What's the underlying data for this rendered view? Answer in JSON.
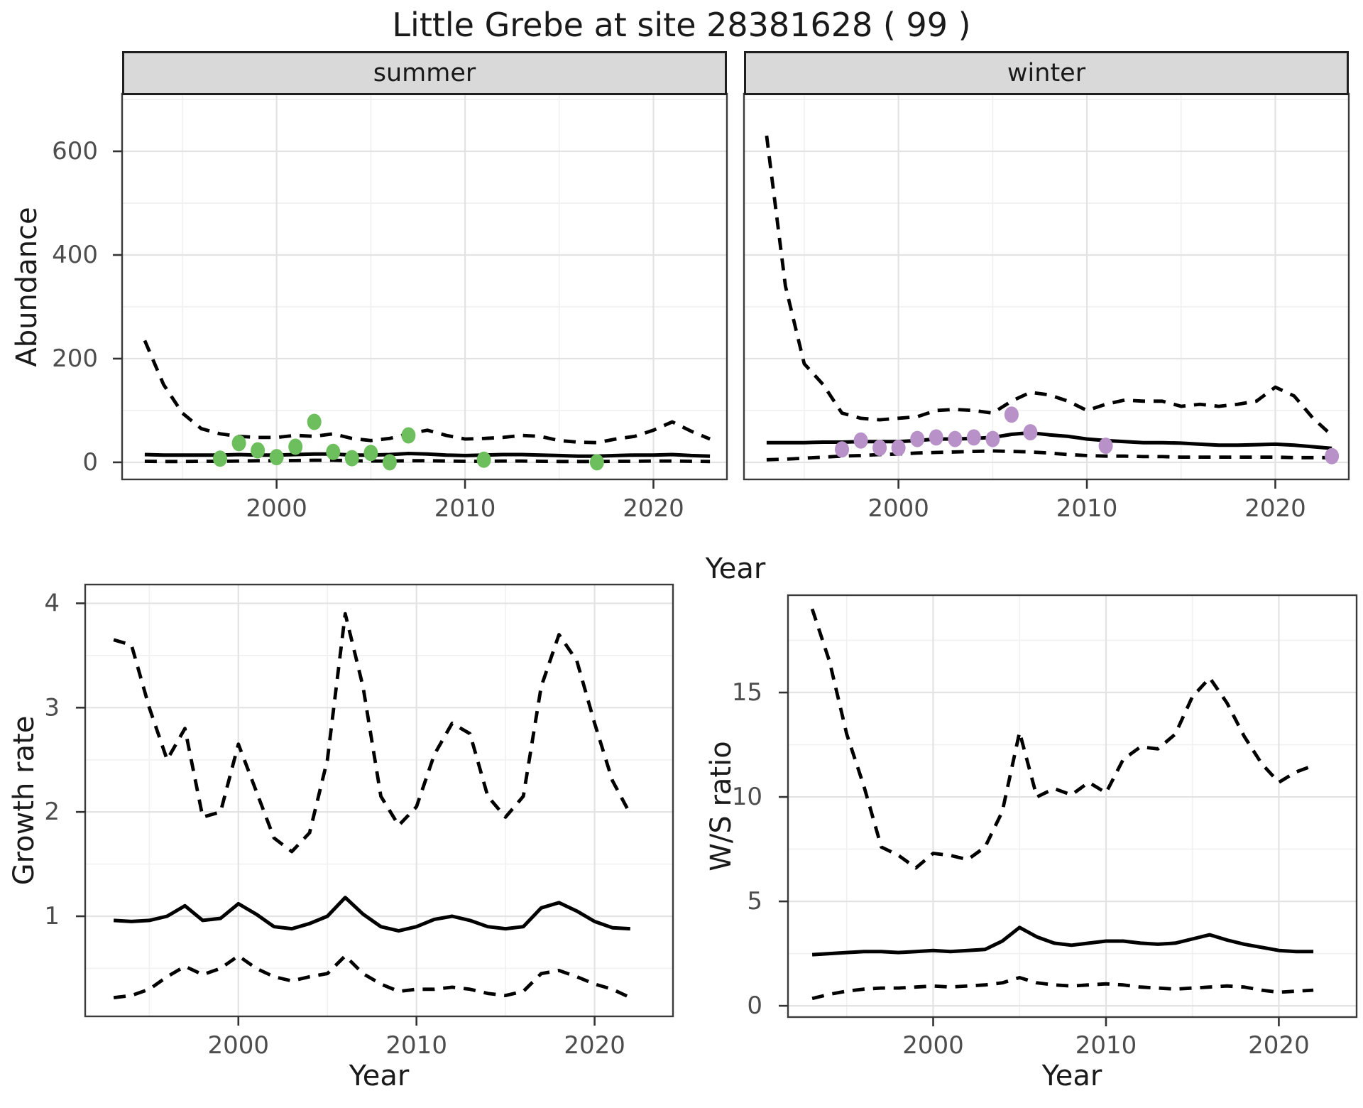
{
  "title": "Little Grebe at site 28381628 ( 99 )",
  "colors": {
    "summer_points": "#6DBE5C",
    "winter_points": "#B791C8",
    "line": "#000000",
    "strip_bg": "#D9D9D9",
    "strip_border": "#1F1F1F",
    "panel_border": "#3A3A3A",
    "grid_major": "#E3E3E3",
    "grid_minor": "#F1F1F1",
    "tick_mark": "#333333",
    "tick_text": "#4D4D4D",
    "title_text": "#1A1A1A",
    "background": "#FFFFFF"
  },
  "chart_data": [
    {
      "id": "summer",
      "type": "line",
      "facet_label": "summer",
      "x_axis": {
        "title": "Year",
        "ticks": [
          2000,
          2010,
          2020
        ],
        "minor_ticks": [
          1995,
          2005,
          2015
        ],
        "range": [
          1991.8,
          2023.9
        ]
      },
      "y_axis": {
        "title": "Abundance",
        "ticks": [
          0,
          200,
          400,
          600
        ],
        "minor_ticks": [
          100,
          300,
          500,
          700
        ],
        "range": [
          -33,
          711
        ]
      },
      "series": [
        {
          "name": "upper-95ci",
          "style": "dashed",
          "x": [
            1993,
            1994,
            1995,
            1996,
            1997,
            1998,
            1999,
            2000,
            2001,
            2002,
            2003,
            2004,
            2005,
            2006,
            2007,
            2008,
            2009,
            2010,
            2011,
            2012,
            2013,
            2014,
            2015,
            2016,
            2017,
            2018,
            2019,
            2020,
            2021,
            2022,
            2023
          ],
          "y": [
            235,
            150,
            95,
            65,
            55,
            50,
            48,
            48,
            52,
            50,
            55,
            46,
            42,
            46,
            55,
            62,
            52,
            45,
            46,
            48,
            52,
            50,
            42,
            39,
            38,
            45,
            50,
            62,
            78,
            60,
            45
          ]
        },
        {
          "name": "median",
          "style": "solid",
          "x": [
            1993,
            1994,
            1995,
            1996,
            1997,
            1998,
            1999,
            2000,
            2001,
            2002,
            2003,
            2004,
            2005,
            2006,
            2007,
            2008,
            2009,
            2010,
            2011,
            2012,
            2013,
            2014,
            2015,
            2016,
            2017,
            2018,
            2019,
            2020,
            2021,
            2022,
            2023
          ],
          "y": [
            15,
            14,
            14,
            14,
            14,
            15,
            14,
            14,
            15,
            16,
            16,
            14,
            14,
            15,
            17,
            16,
            14,
            13,
            14,
            15,
            15,
            14,
            13,
            12,
            12,
            13,
            14,
            14,
            15,
            13,
            12
          ]
        },
        {
          "name": "lower-95ci",
          "style": "dashed",
          "x": [
            1993,
            1994,
            1995,
            1996,
            1997,
            1998,
            1999,
            2000,
            2001,
            2002,
            2003,
            2004,
            2005,
            2006,
            2007,
            2008,
            2009,
            2010,
            2011,
            2012,
            2013,
            2014,
            2015,
            2016,
            2017,
            2018,
            2019,
            2020,
            2021,
            2022,
            2023
          ],
          "y": [
            2,
            1.5,
            1.5,
            2,
            2,
            2.5,
            3,
            3,
            3.5,
            4,
            4,
            3,
            2.5,
            2.5,
            3,
            3,
            2.5,
            2,
            2,
            2.5,
            2.5,
            2,
            1.5,
            1.5,
            1.5,
            2,
            2,
            2.5,
            2.5,
            2,
            1.5
          ]
        }
      ],
      "points": {
        "name": "observed-counts",
        "color_key": "summer_points",
        "x": [
          1997,
          1998,
          1999,
          2000,
          2001,
          2002,
          2003,
          2004,
          2005,
          2006,
          2007,
          2011,
          2017
        ],
        "y": [
          7,
          37,
          23,
          10,
          30,
          78,
          20,
          8,
          18,
          0,
          52,
          5,
          0
        ]
      }
    },
    {
      "id": "winter",
      "type": "line",
      "facet_label": "winter",
      "x_axis": {
        "title": "",
        "ticks": [
          2000,
          2010,
          2020
        ],
        "minor_ticks": [
          1995,
          2005,
          2015
        ],
        "range": [
          1991.8,
          2023.9
        ]
      },
      "y_axis": {
        "title": "",
        "ticks": [
          0,
          200,
          400,
          600
        ],
        "minor_ticks": [
          100,
          300,
          500,
          700
        ],
        "range": [
          -33,
          711
        ]
      },
      "series": [
        {
          "name": "upper-95ci",
          "style": "dashed",
          "x": [
            1993,
            1994,
            1995,
            1996,
            1997,
            1998,
            1999,
            2000,
            2001,
            2002,
            2003,
            2004,
            2005,
            2006,
            2007,
            2008,
            2009,
            2010,
            2011,
            2012,
            2013,
            2014,
            2015,
            2016,
            2017,
            2018,
            2019,
            2020,
            2021,
            2022,
            2023
          ],
          "y": [
            630,
            340,
            190,
            150,
            95,
            85,
            82,
            85,
            88,
            100,
            102,
            100,
            95,
            118,
            135,
            130,
            118,
            100,
            112,
            120,
            118,
            118,
            108,
            112,
            108,
            112,
            118,
            145,
            128,
            85,
            52
          ]
        },
        {
          "name": "median",
          "style": "solid",
          "x": [
            1993,
            1994,
            1995,
            1996,
            1997,
            1998,
            1999,
            2000,
            2001,
            2002,
            2003,
            2004,
            2005,
            2006,
            2007,
            2008,
            2009,
            2010,
            2011,
            2012,
            2013,
            2014,
            2015,
            2016,
            2017,
            2018,
            2019,
            2020,
            2021,
            2022,
            2023
          ],
          "y": [
            38,
            38,
            38,
            39,
            39,
            40,
            40,
            40,
            42,
            45,
            45,
            46,
            48,
            54,
            57,
            53,
            50,
            45,
            42,
            40,
            38,
            38,
            37,
            35,
            33,
            33,
            34,
            35,
            33,
            30,
            27
          ]
        },
        {
          "name": "lower-95ci",
          "style": "dashed",
          "x": [
            1993,
            1994,
            1995,
            1996,
            1997,
            1998,
            1999,
            2000,
            2001,
            2002,
            2003,
            2004,
            2005,
            2006,
            2007,
            2008,
            2009,
            2010,
            2011,
            2012,
            2013,
            2014,
            2015,
            2016,
            2017,
            2018,
            2019,
            2020,
            2021,
            2022,
            2023
          ],
          "y": [
            5,
            6,
            8,
            10,
            12,
            13,
            15,
            16,
            18,
            19,
            20,
            21,
            22,
            21,
            20,
            18,
            15,
            13,
            12,
            12,
            11,
            11,
            10,
            10,
            10,
            10,
            10,
            10,
            9,
            9,
            9
          ]
        }
      ],
      "points": {
        "name": "observed-counts",
        "color_key": "winter_points",
        "x": [
          1997,
          1998,
          1999,
          2000,
          2001,
          2002,
          2003,
          2004,
          2005,
          2006,
          2007,
          2011,
          2023
        ],
        "y": [
          25,
          42,
          28,
          28,
          45,
          48,
          45,
          48,
          45,
          92,
          58,
          32,
          12
        ]
      }
    },
    {
      "id": "growth_rate",
      "type": "line",
      "facet_label": "",
      "x_axis": {
        "title": "Year",
        "ticks": [
          2000,
          2010,
          2020
        ],
        "minor_ticks": [
          1995,
          2005,
          2015
        ],
        "range": [
          1991.4,
          2024.4
        ]
      },
      "y_axis": {
        "title": "Growth rate",
        "ticks": [
          1,
          2,
          3,
          4
        ],
        "minor_ticks": [
          0.5,
          1.5,
          2.5,
          3.5
        ],
        "range": [
          0.04,
          4.18
        ]
      },
      "series": [
        {
          "name": "upper-95ci",
          "style": "dashed",
          "x": [
            1993,
            1994,
            1995,
            1996,
            1997,
            1998,
            1999,
            2000,
            2001,
            2002,
            2003,
            2004,
            2005,
            2006,
            2007,
            2008,
            2009,
            2010,
            2011,
            2012,
            2013,
            2014,
            2015,
            2016,
            2017,
            2018,
            2019,
            2020,
            2021,
            2022
          ],
          "y": [
            3.65,
            3.6,
            3.0,
            2.5,
            2.8,
            1.95,
            2.0,
            2.65,
            2.2,
            1.75,
            1.62,
            1.8,
            2.5,
            3.9,
            3.2,
            2.15,
            1.87,
            2.05,
            2.55,
            2.85,
            2.75,
            2.15,
            1.95,
            2.15,
            3.2,
            3.7,
            3.45,
            2.85,
            2.3,
            1.98
          ]
        },
        {
          "name": "median",
          "style": "solid",
          "x": [
            1993,
            1994,
            1995,
            1996,
            1997,
            1998,
            1999,
            2000,
            2001,
            2002,
            2003,
            2004,
            2005,
            2006,
            2007,
            2008,
            2009,
            2010,
            2011,
            2012,
            2013,
            2014,
            2015,
            2016,
            2017,
            2018,
            2019,
            2020,
            2021,
            2022
          ],
          "y": [
            0.96,
            0.95,
            0.96,
            1.0,
            1.1,
            0.96,
            0.98,
            1.12,
            1.02,
            0.9,
            0.88,
            0.93,
            1.0,
            1.18,
            1.02,
            0.9,
            0.86,
            0.9,
            0.97,
            1.0,
            0.96,
            0.9,
            0.88,
            0.9,
            1.08,
            1.13,
            1.05,
            0.95,
            0.89,
            0.88
          ]
        },
        {
          "name": "lower-95ci",
          "style": "dashed",
          "x": [
            1993,
            1994,
            1995,
            1996,
            1997,
            1998,
            1999,
            2000,
            2001,
            2002,
            2003,
            2004,
            2005,
            2006,
            2007,
            2008,
            2009,
            2010,
            2011,
            2012,
            2013,
            2014,
            2015,
            2016,
            2017,
            2018,
            2019,
            2020,
            2021,
            2022
          ],
          "y": [
            0.22,
            0.24,
            0.3,
            0.42,
            0.52,
            0.44,
            0.5,
            0.62,
            0.5,
            0.42,
            0.38,
            0.42,
            0.45,
            0.62,
            0.45,
            0.35,
            0.28,
            0.3,
            0.3,
            0.32,
            0.3,
            0.26,
            0.24,
            0.28,
            0.45,
            0.48,
            0.42,
            0.35,
            0.3,
            0.22
          ]
        }
      ]
    },
    {
      "id": "ws_ratio",
      "type": "line",
      "facet_label": "",
      "x_axis": {
        "title": "Year",
        "ticks": [
          2000,
          2010,
          2020
        ],
        "minor_ticks": [
          1995,
          2005,
          2015
        ],
        "range": [
          1991.6,
          2024.5
        ]
      },
      "y_axis": {
        "title": "W/S ratio",
        "ticks": [
          0,
          5,
          10,
          15
        ],
        "minor_ticks": [
          2.5,
          7.5,
          12.5,
          17.5
        ],
        "range": [
          -0.54,
          19.66
        ]
      },
      "series": [
        {
          "name": "upper-95ci",
          "style": "dashed",
          "x": [
            1993,
            1994,
            1995,
            1996,
            1997,
            1998,
            1999,
            2000,
            2001,
            2002,
            2003,
            2004,
            2005,
            2006,
            2007,
            2008,
            2009,
            2010,
            2011,
            2012,
            2013,
            2014,
            2015,
            2016,
            2017,
            2018,
            2019,
            2020,
            2021,
            2022
          ],
          "y": [
            19.0,
            16.5,
            13.0,
            10.5,
            7.6,
            7.2,
            6.6,
            7.3,
            7.2,
            7.0,
            7.6,
            9.3,
            13.1,
            10.0,
            10.4,
            10.1,
            10.7,
            10.2,
            11.8,
            12.4,
            12.3,
            13.0,
            14.8,
            15.7,
            14.5,
            12.9,
            11.6,
            10.7,
            11.2,
            11.5
          ]
        },
        {
          "name": "median",
          "style": "solid",
          "x": [
            1993,
            1994,
            1995,
            1996,
            1997,
            1998,
            1999,
            2000,
            2001,
            2002,
            2003,
            2004,
            2005,
            2006,
            2007,
            2008,
            2009,
            2010,
            2011,
            2012,
            2013,
            2014,
            2015,
            2016,
            2017,
            2018,
            2019,
            2020,
            2021,
            2022
          ],
          "y": [
            2.45,
            2.5,
            2.55,
            2.6,
            2.6,
            2.55,
            2.6,
            2.65,
            2.6,
            2.65,
            2.7,
            3.1,
            3.75,
            3.3,
            3.0,
            2.9,
            3.0,
            3.1,
            3.1,
            3.0,
            2.95,
            3.0,
            3.2,
            3.4,
            3.15,
            2.95,
            2.8,
            2.65,
            2.6,
            2.6
          ]
        },
        {
          "name": "lower-95ci",
          "style": "dashed",
          "x": [
            1993,
            1994,
            1995,
            1996,
            1997,
            1998,
            1999,
            2000,
            2001,
            2002,
            2003,
            2004,
            2005,
            2006,
            2007,
            2008,
            2009,
            2010,
            2011,
            2012,
            2013,
            2014,
            2015,
            2016,
            2017,
            2018,
            2019,
            2020,
            2021,
            2022
          ],
          "y": [
            0.35,
            0.55,
            0.7,
            0.8,
            0.85,
            0.85,
            0.9,
            0.95,
            0.9,
            0.95,
            1.0,
            1.1,
            1.35,
            1.1,
            1.0,
            0.95,
            1.0,
            1.05,
            1.0,
            0.9,
            0.85,
            0.8,
            0.85,
            0.9,
            0.95,
            0.9,
            0.75,
            0.65,
            0.7,
            0.75
          ]
        }
      ]
    }
  ]
}
